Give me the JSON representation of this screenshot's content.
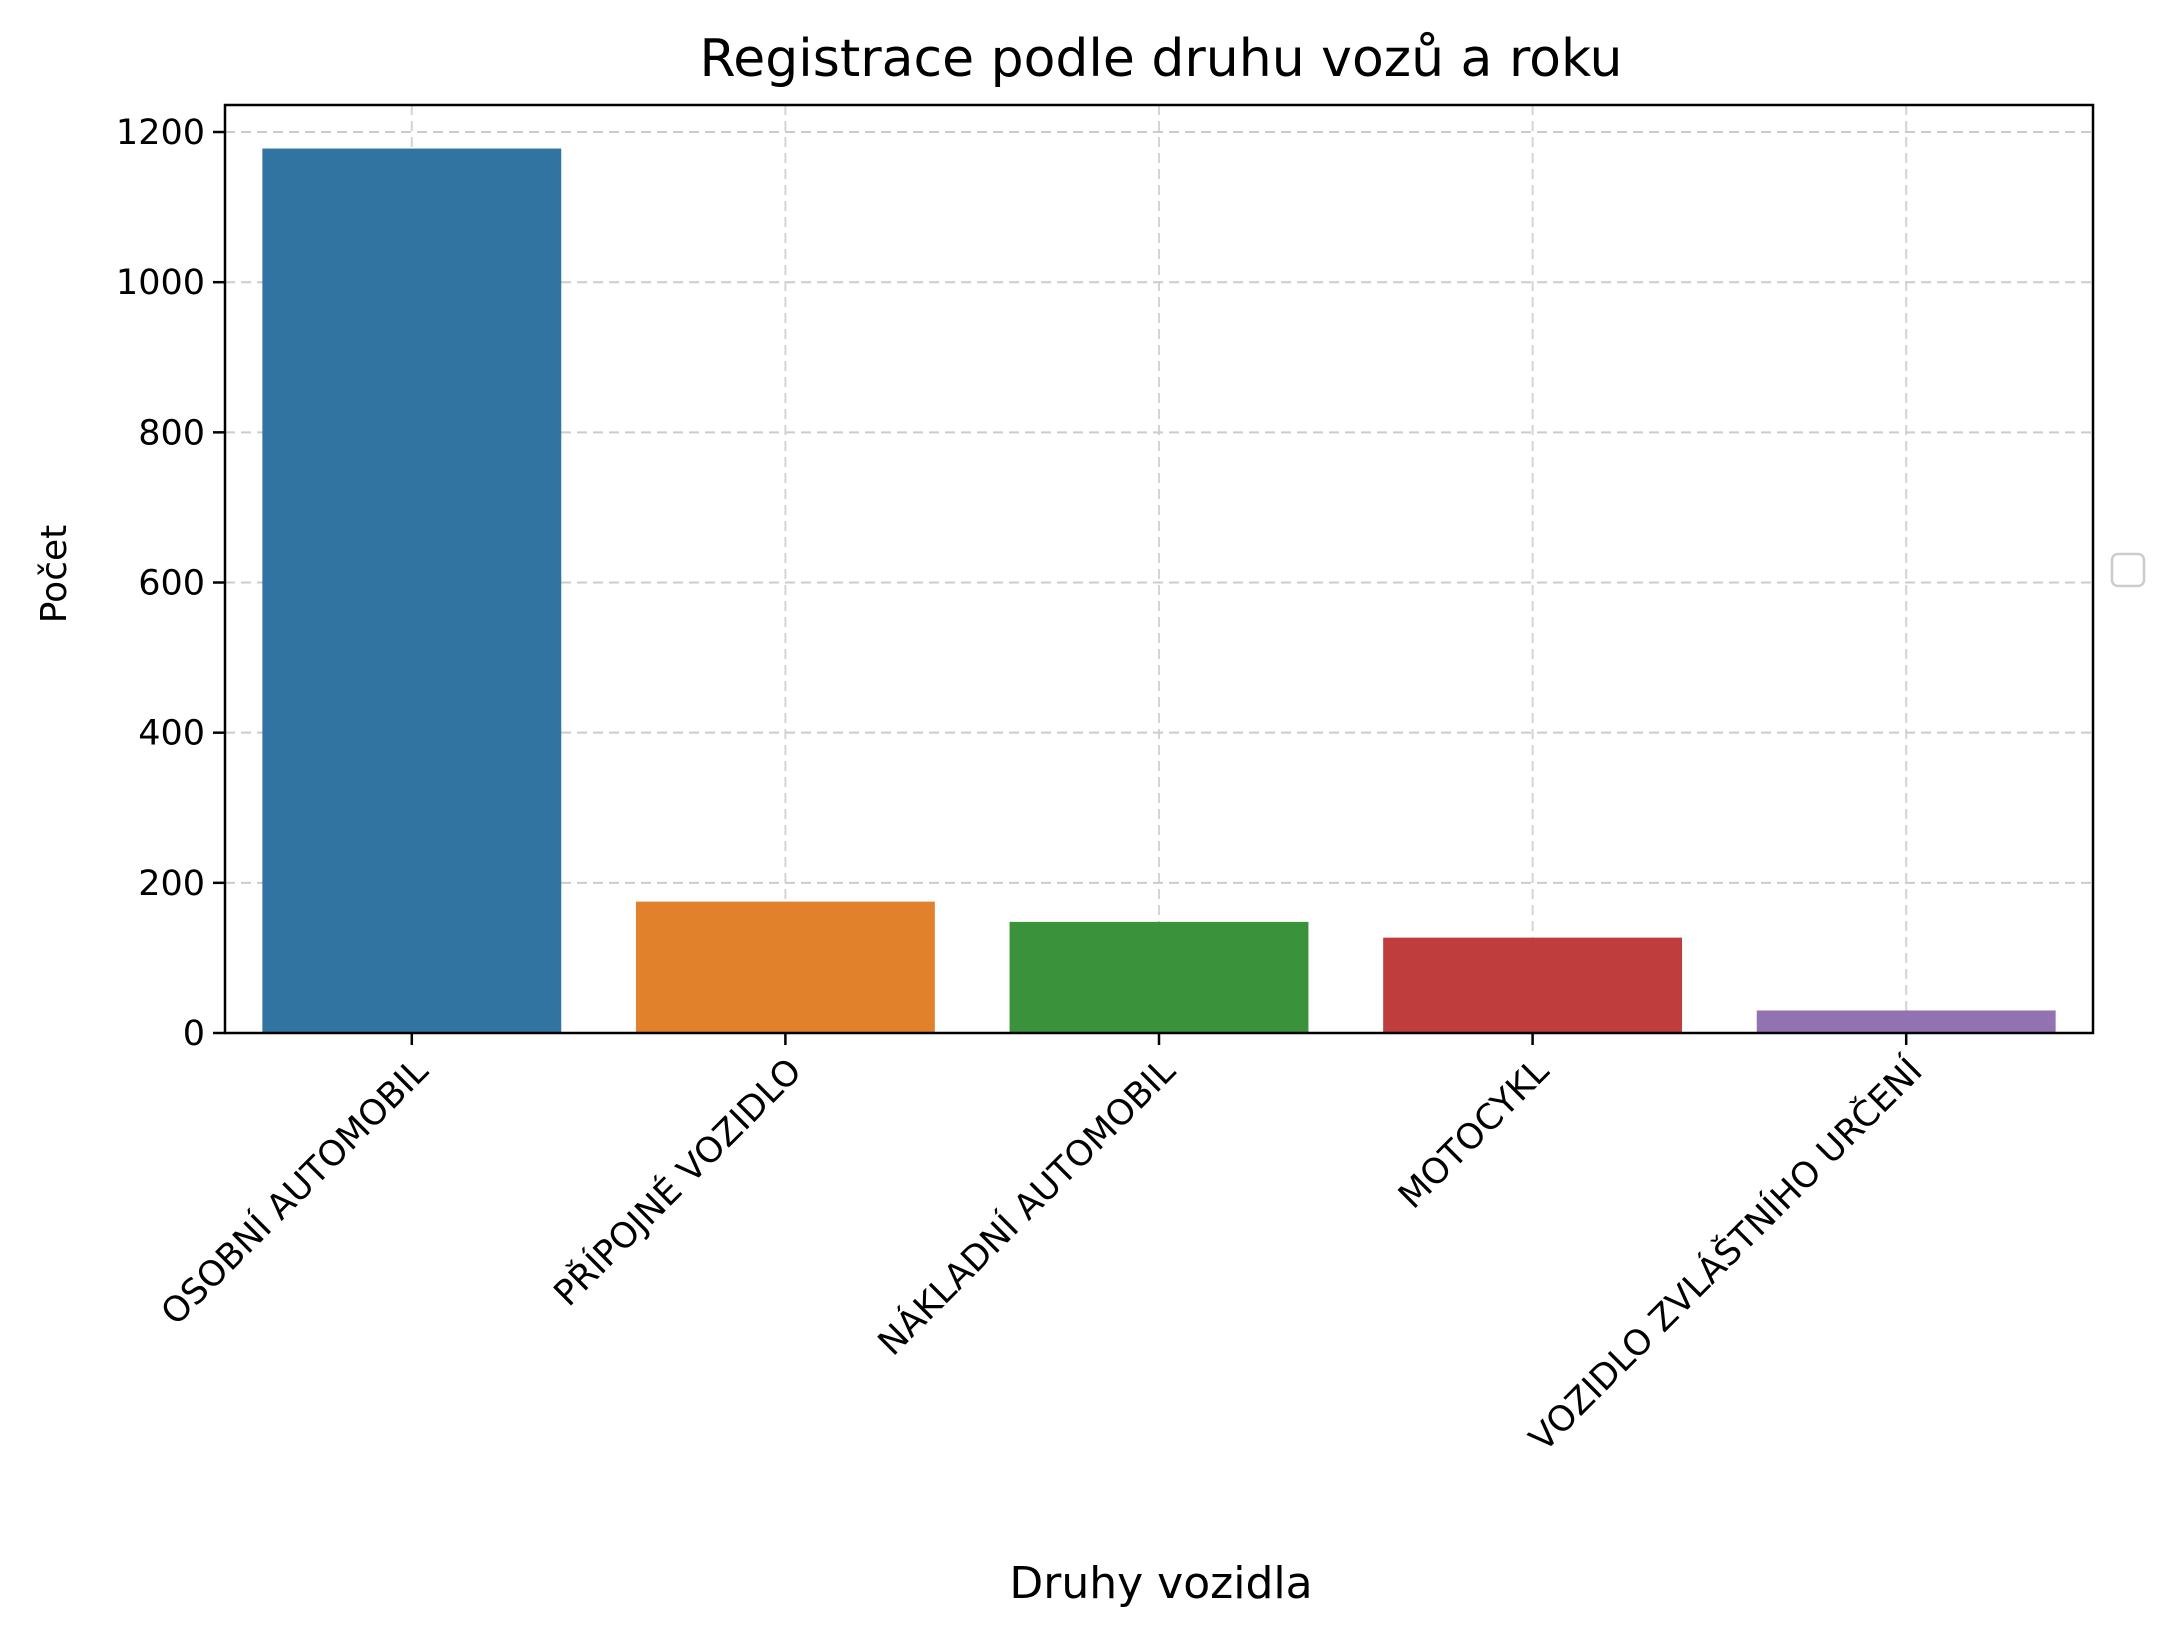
{
  "chart_data": {
    "type": "bar",
    "title": "Registrace podle druhu vozů a roku",
    "xlabel": "Druhy vozidla",
    "ylabel": "Počet",
    "categories": [
      "OSOBNÍ AUTOMOBIL",
      "PŘÍPOJNÉ VOZIDLO",
      "NÁKLADNÍ AUTOMOBIL",
      "MOTOCYKL",
      "VOZIDLO ZVLÁŠTNÍHO URČENÍ"
    ],
    "values": [
      1178,
      175,
      148,
      127,
      30
    ],
    "colors": [
      "#3274a1",
      "#e1812c",
      "#3a923a",
      "#c03d3e",
      "#9372b2"
    ],
    "ylim": [
      0,
      1236
    ],
    "yticks": [
      0,
      200,
      400,
      600,
      800,
      1000,
      1200
    ],
    "grid": true,
    "legend": {
      "placement": "right",
      "entries": []
    }
  }
}
